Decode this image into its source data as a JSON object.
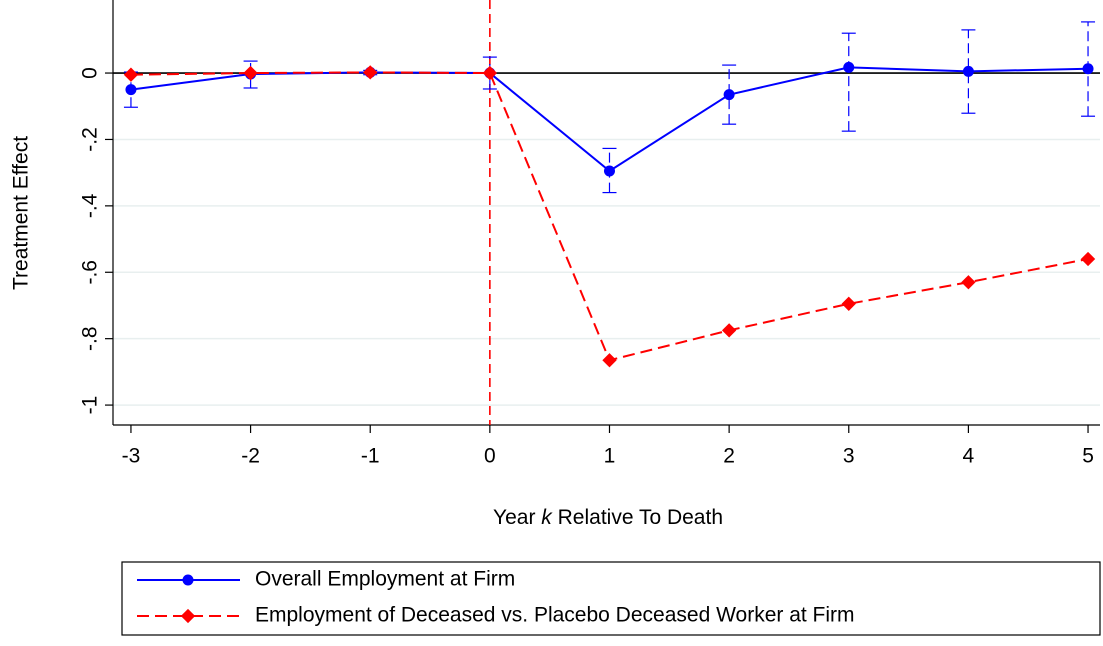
{
  "chart_data": {
    "type": "line",
    "x_label": {
      "before": "Year",
      "variable": "k",
      "after": "Relative To Death"
    },
    "y_label": "Treatment Effect",
    "x": [
      -3,
      -2,
      -1,
      0,
      1,
      2,
      3,
      4,
      5
    ],
    "xlim": [
      -3.15,
      5.1
    ],
    "xticks": [
      -3,
      -2,
      -1,
      0,
      1,
      2,
      3,
      4,
      5
    ],
    "ylim": [
      -1.06,
      0.22
    ],
    "yticks": [
      0,
      {
        "value": -0.2,
        "label": "-.2"
      },
      {
        "value": -0.4,
        "label": "-.4"
      },
      {
        "value": -0.6,
        "label": "-.6"
      },
      {
        "value": -0.8,
        "label": "-.8"
      },
      -1
    ],
    "grid": true,
    "reference_x": 0,
    "reference_y": 0,
    "series": [
      {
        "name": "Overall Employment at Firm",
        "color": "#0000ff",
        "marker": "circle",
        "dashed": false,
        "values": [
          -0.05,
          -0.003,
          0.002,
          0,
          -0.295,
          -0.065,
          0.017,
          0.005,
          0.013
        ],
        "ci_low": [
          -0.103,
          -0.045,
          -0.005,
          -0.048,
          -0.36,
          -0.154,
          -0.175,
          -0.121,
          -0.13
        ],
        "ci_high": [
          0.003,
          0.036,
          0.008,
          0.048,
          -0.227,
          0.024,
          0.12,
          0.13,
          0.154
        ]
      },
      {
        "name": "Employment of Deceased vs. Placebo Deceased Worker at Firm",
        "color": "#ff0000",
        "marker": "diamond",
        "dashed": true,
        "values": [
          -0.005,
          0,
          0.002,
          0,
          -0.865,
          -0.775,
          -0.695,
          -0.63,
          -0.56
        ]
      }
    ]
  }
}
